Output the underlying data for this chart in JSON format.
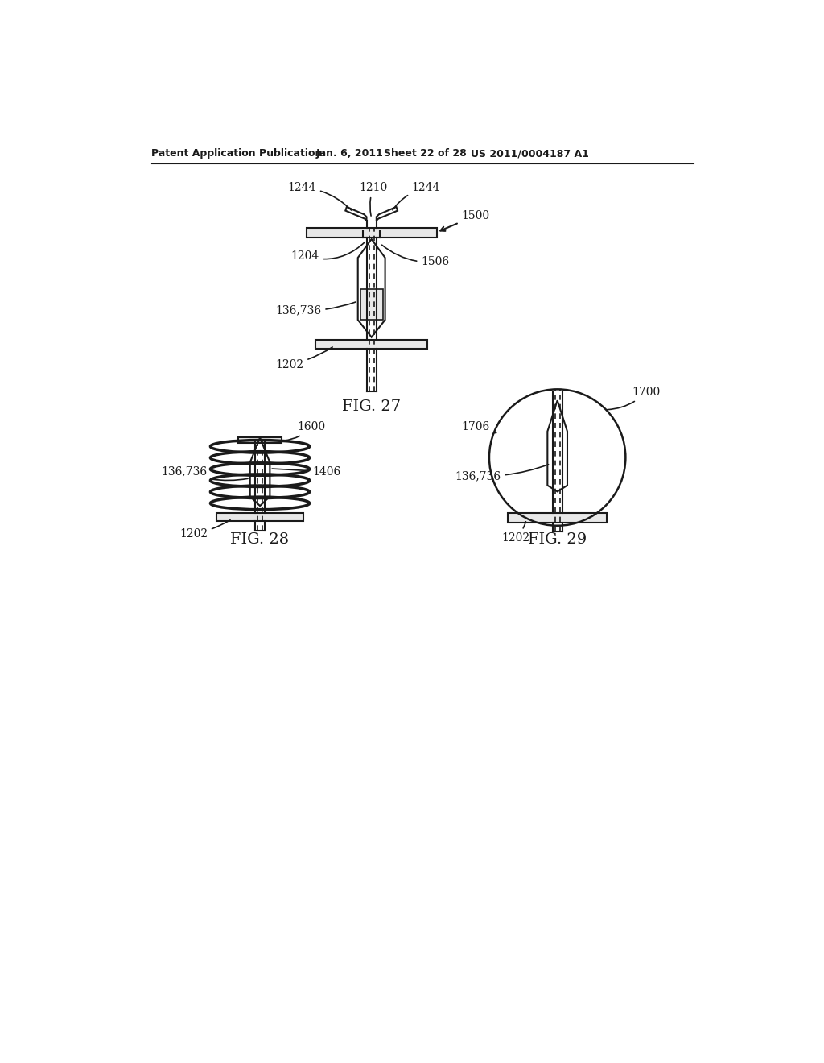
{
  "background_color": "#ffffff",
  "header_text": "Patent Application Publication",
  "header_date": "Jan. 6, 2011",
  "header_sheet": "Sheet 22 of 28",
  "header_patent": "US 2011/0004187 A1",
  "fig27_label": "FIG. 27",
  "fig28_label": "FIG. 28",
  "fig29_label": "FIG. 29",
  "line_color": "#1a1a1a",
  "text_color": "#1a1a1a"
}
